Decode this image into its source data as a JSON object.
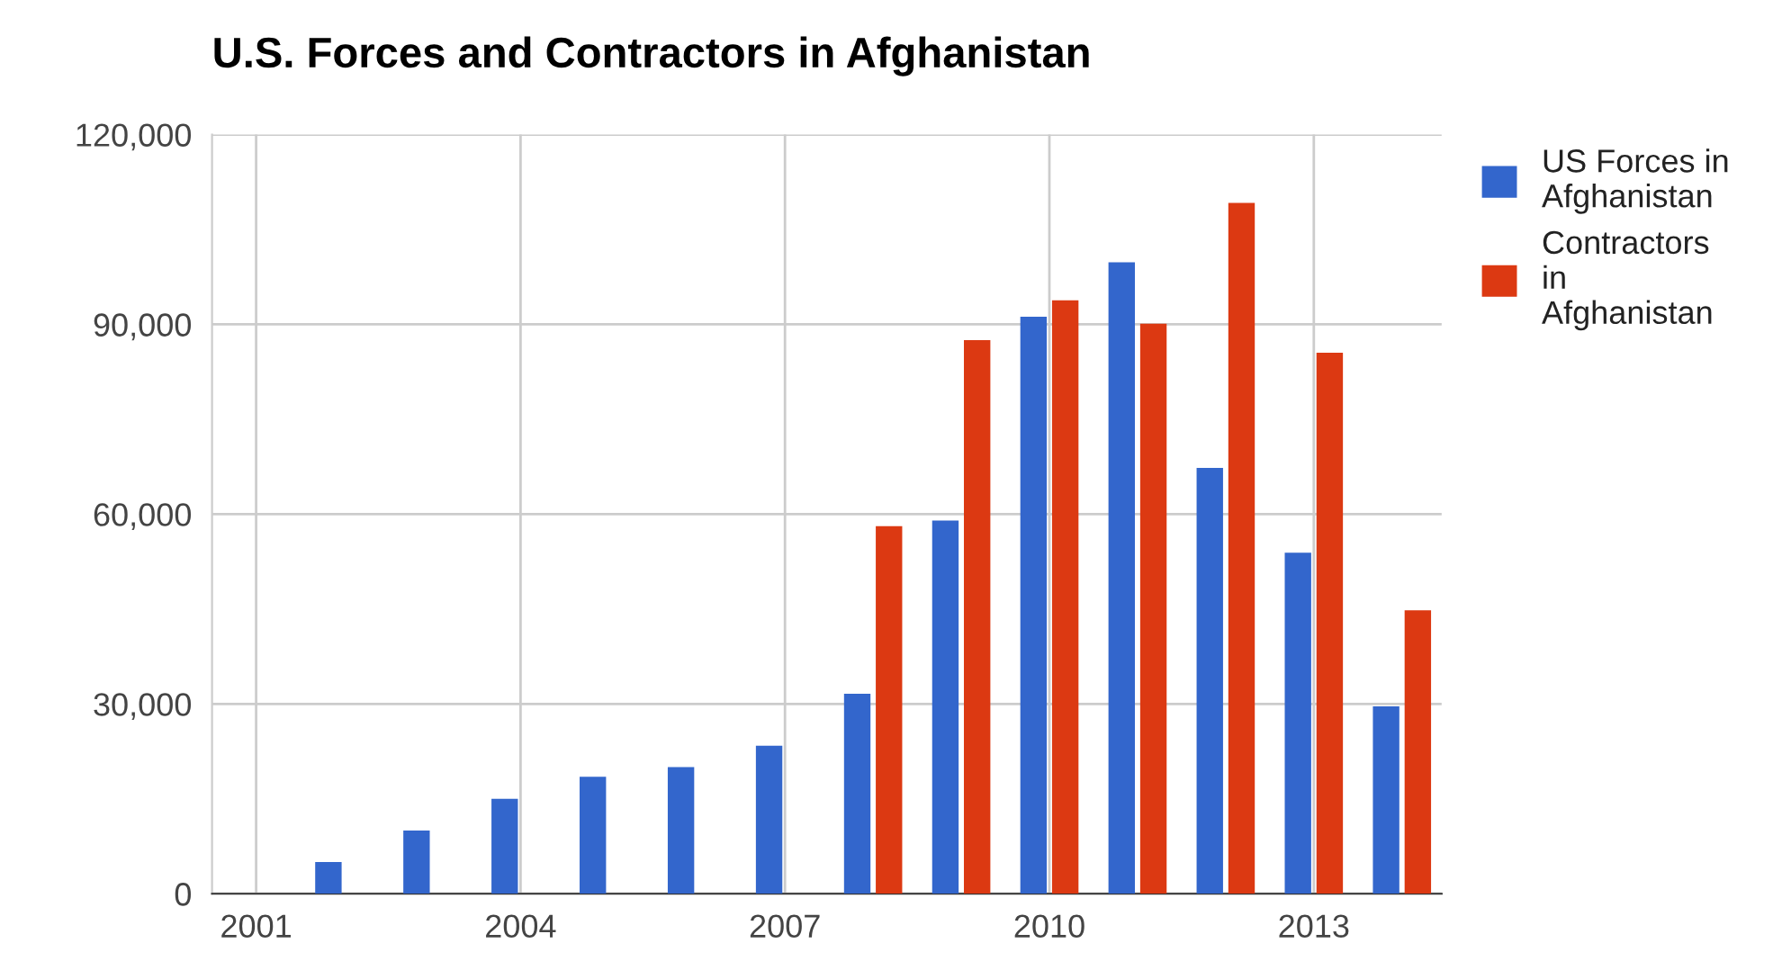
{
  "chart_data": {
    "type": "bar",
    "title": "U.S. Forces and Contractors in Afghanistan",
    "x": [
      2002,
      2003,
      2004,
      2005,
      2006,
      2007,
      2008,
      2009,
      2010,
      2011,
      2012,
      2013,
      2014
    ],
    "series": [
      {
        "name": "US Forces in Afghanistan",
        "color": "#3366cc",
        "values": [
          5000,
          10000,
          15000,
          18500,
          20000,
          23400,
          31600,
          59000,
          91200,
          99800,
          67300,
          53900,
          29600
        ]
      },
      {
        "name": "Contractors in Afghanistan",
        "color": "#dc3912",
        "values": [
          null,
          null,
          null,
          null,
          null,
          null,
          58100,
          87500,
          93800,
          90100,
          109200,
          85500,
          44800
        ]
      }
    ],
    "xlim": [
      2000.5,
      2014.45
    ],
    "xticks": [
      2001,
      2004,
      2007,
      2010,
      2013
    ],
    "ylim": [
      0,
      120000
    ],
    "yticks": [
      {
        "value": 0,
        "label": "0"
      },
      {
        "value": 30000,
        "label": "30,000"
      },
      {
        "value": 60000,
        "label": "60,000"
      },
      {
        "value": 90000,
        "label": "90,000"
      },
      {
        "value": 120000,
        "label": "120,000"
      }
    ],
    "grid": true,
    "legend": "right"
  }
}
